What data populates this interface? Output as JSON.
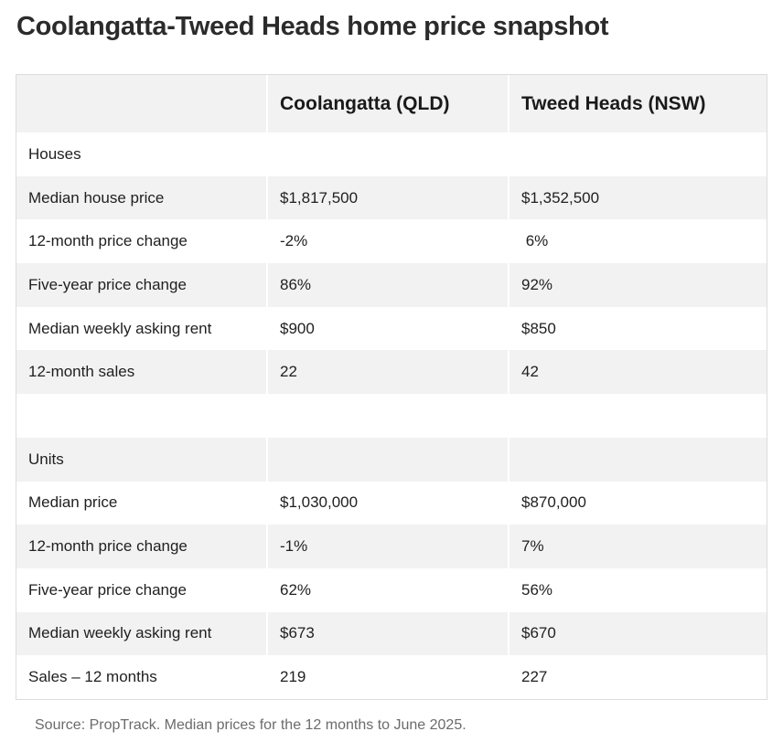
{
  "title": "Coolangatta-Tweed Heads home price snapshot",
  "table": {
    "headers": [
      "",
      "Coolangatta (QLD)",
      "Tweed Heads (NSW)"
    ],
    "rows": [
      [
        "Houses",
        "",
        ""
      ],
      [
        "Median house price",
        "$1,817,500",
        "$1,352,500"
      ],
      [
        "12-month price change",
        "-2%",
        " 6%"
      ],
      [
        "Five-year price change",
        "86%",
        "92%"
      ],
      [
        "Median weekly asking rent",
        "$900",
        "$850"
      ],
      [
        "12-month sales",
        "22",
        "42"
      ],
      [
        "",
        "",
        ""
      ],
      [
        "Units",
        "",
        ""
      ],
      [
        "Median price",
        "$1,030,000",
        "$870,000"
      ],
      [
        "12-month price change",
        "-1%",
        "7%"
      ],
      [
        "Five-year price change",
        "62%",
        "56%"
      ],
      [
        "Median weekly asking rent",
        "$673",
        "$670"
      ],
      [
        "Sales – 12 months",
        "219",
        "227"
      ]
    ]
  },
  "source": "Source: PropTrack. Median prices for the 12 months to June 2025."
}
